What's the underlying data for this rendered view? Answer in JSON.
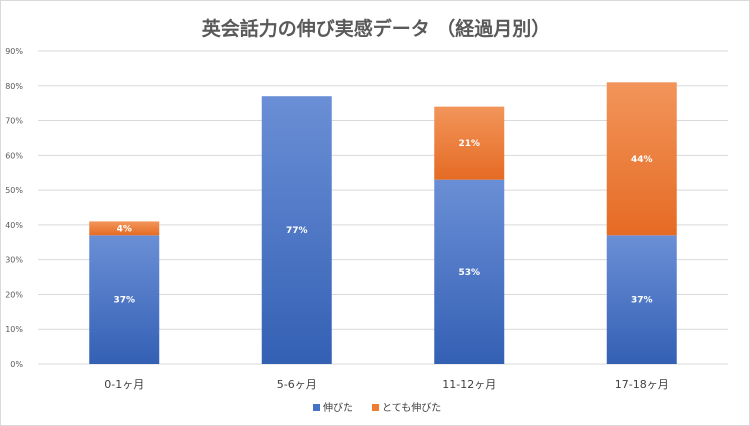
{
  "chart_data": {
    "type": "bar",
    "stacked": true,
    "title": "英会話力の伸び実感データ （経過月別）",
    "categories": [
      "0-1ヶ月",
      "5-6ヶ月",
      "11-12ヶ月",
      "17-18ヶ月"
    ],
    "series": [
      {
        "name": "伸びた",
        "values": [
          37,
          77,
          53,
          37
        ],
        "color": "#4472c4"
      },
      {
        "name": "とても伸びた",
        "values": [
          4,
          0,
          21,
          44
        ],
        "color": "#ed7d31"
      }
    ],
    "data_labels": [
      [
        "37%",
        "77%",
        "53%",
        "37%"
      ],
      [
        "4%",
        "",
        "21%",
        "44%"
      ]
    ],
    "y_ticks": [
      "0%",
      "10%",
      "20%",
      "30%",
      "40%",
      "50%",
      "60%",
      "70%",
      "80%",
      "90%"
    ],
    "ylim": [
      0,
      90
    ],
    "grid": true,
    "legend_position": "bottom"
  }
}
